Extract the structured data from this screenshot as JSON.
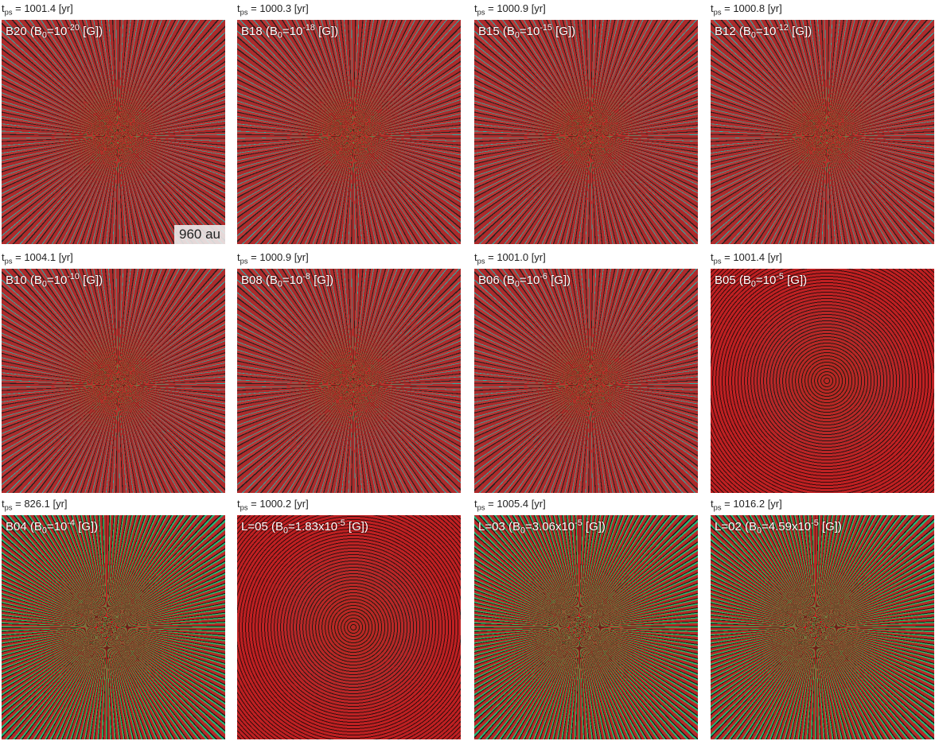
{
  "panels": [
    {
      "time": [
        {
          "text": "t"
        },
        {
          "sub": "ps"
        },
        {
          "text": " = 1001.4 [yr]"
        }
      ],
      "label": [
        {
          "text": "B20 (B"
        },
        {
          "sub": "0"
        },
        {
          "text": "=10"
        },
        {
          "sup": "-20"
        },
        {
          "text": " [G])"
        }
      ],
      "scale": "960 au"
    },
    {
      "time": [
        {
          "text": "t"
        },
        {
          "sub": "ps"
        },
        {
          "text": " = 1000.3 [yr]"
        }
      ],
      "label": [
        {
          "text": "B18 (B"
        },
        {
          "sub": "0"
        },
        {
          "text": "=10"
        },
        {
          "sup": "-18"
        },
        {
          "text": " [G])"
        }
      ]
    },
    {
      "time": [
        {
          "text": "t"
        },
        {
          "sub": "ps"
        },
        {
          "text": " = 1000.9 [yr]"
        }
      ],
      "label": [
        {
          "text": "B15 (B"
        },
        {
          "sub": "0"
        },
        {
          "text": "=10"
        },
        {
          "sup": "-15"
        },
        {
          "text": " [G])"
        }
      ]
    },
    {
      "time": [
        {
          "text": "t"
        },
        {
          "sub": "ps"
        },
        {
          "text": " = 1000.8 [yr]"
        }
      ],
      "label": [
        {
          "text": "B12 (B"
        },
        {
          "sub": "0"
        },
        {
          "text": "=10"
        },
        {
          "sup": "-12"
        },
        {
          "text": " [G])"
        }
      ]
    },
    {
      "time": [
        {
          "text": "t"
        },
        {
          "sub": "ps"
        },
        {
          "text": " = 1004.1 [yr]"
        }
      ],
      "label": [
        {
          "text": "B10 (B"
        },
        {
          "sub": "0"
        },
        {
          "text": "=10"
        },
        {
          "sup": "-10"
        },
        {
          "text": " [G])"
        }
      ]
    },
    {
      "time": [
        {
          "text": "t"
        },
        {
          "sub": "ps"
        },
        {
          "text": " = 1000.9 [yr]"
        }
      ],
      "label": [
        {
          "text": "B08 (B"
        },
        {
          "sub": "0"
        },
        {
          "text": "=10"
        },
        {
          "sup": "-8"
        },
        {
          "text": " [G])"
        }
      ]
    },
    {
      "time": [
        {
          "text": "t"
        },
        {
          "sub": "ps"
        },
        {
          "text": " = 1001.0 [yr]"
        }
      ],
      "label": [
        {
          "text": "B06 (B"
        },
        {
          "sub": "0"
        },
        {
          "text": "=10"
        },
        {
          "sup": "-6"
        },
        {
          "text": " [G])"
        }
      ]
    },
    {
      "time": [
        {
          "text": "t"
        },
        {
          "sub": "ps"
        },
        {
          "text": " = 1001.4 [yr]"
        }
      ],
      "label": [
        {
          "text": "B05 (B"
        },
        {
          "sub": "0"
        },
        {
          "text": "=10"
        },
        {
          "sup": "-5"
        },
        {
          "text": " [G])"
        }
      ]
    },
    {
      "time": [
        {
          "text": "t"
        },
        {
          "sub": "ps"
        },
        {
          "text": " = 826.1 [yr]"
        }
      ],
      "label": [
        {
          "text": "B04 (B"
        },
        {
          "sub": "0"
        },
        {
          "text": "=10"
        },
        {
          "sup": "-4"
        },
        {
          "text": " [G])"
        }
      ]
    },
    {
      "time": [
        {
          "text": "t"
        },
        {
          "sub": "ps"
        },
        {
          "text": " = 1000.2 [yr]"
        }
      ],
      "label": [
        {
          "text": "L=05  (B"
        },
        {
          "sub": "0"
        },
        {
          "text": "=1.83x10"
        },
        {
          "sup": "-5"
        },
        {
          "text": " [G])"
        }
      ]
    },
    {
      "time": [
        {
          "text": "t"
        },
        {
          "sub": "ps"
        },
        {
          "text": " = 1005.4 [yr]"
        }
      ],
      "label": [
        {
          "text": "L=03  (B"
        },
        {
          "sub": "0"
        },
        {
          "text": "=3.06x10"
        },
        {
          "sup": "-5"
        },
        {
          "text": " [G])"
        }
      ]
    },
    {
      "time": [
        {
          "text": "t"
        },
        {
          "sub": "ps"
        },
        {
          "text": " = 1016.2 [yr]"
        }
      ],
      "label": [
        {
          "text": "L=02  (B"
        },
        {
          "sub": "0"
        },
        {
          "text": "=4.59x10"
        },
        {
          "sup": "-5"
        },
        {
          "text": " [G])"
        }
      ]
    }
  ]
}
